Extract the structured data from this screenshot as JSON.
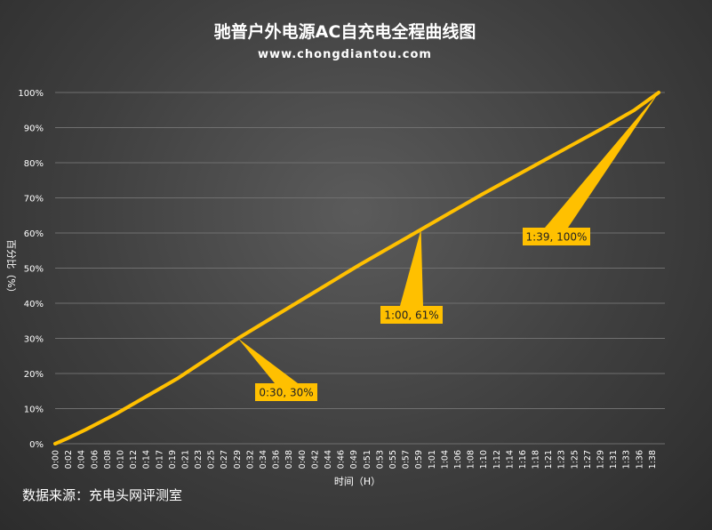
{
  "chart_data": {
    "type": "line",
    "title": "驰普户外电源AC自充电全程曲线图",
    "subtitle": "www.chongdiantou.com",
    "xlabel": "时间（H）",
    "ylabel": "百分比（%）",
    "source": "数据来源：充电头网评测室",
    "ylim": [
      0,
      100
    ],
    "y_ticks": [
      "0%",
      "10%",
      "20%",
      "30%",
      "40%",
      "50%",
      "60%",
      "70%",
      "80%",
      "90%",
      "100%"
    ],
    "x_tick_labels": [
      "0:00",
      "0:02",
      "0:04",
      "0:06",
      "0:08",
      "0:10",
      "0:12",
      "0:14",
      "0:17",
      "0:19",
      "0:21",
      "0:23",
      "0:25",
      "0:27",
      "0:29",
      "0:32",
      "0:34",
      "0:36",
      "0:38",
      "0:40",
      "0:42",
      "0:44",
      "0:46",
      "0:49",
      "0:51",
      "0:53",
      "0:55",
      "0:57",
      "0:59",
      "1:01",
      "1:04",
      "1:06",
      "1:08",
      "1:10",
      "1:12",
      "1:14",
      "1:16",
      "1:18",
      "1:21",
      "1:23",
      "1:25",
      "1:27",
      "1:29",
      "1:31",
      "1:33",
      "1:36",
      "1:38"
    ],
    "x_minutes_range": [
      0,
      100
    ],
    "grid": true,
    "series": [
      {
        "x_minutes": [
          0,
          2,
          5,
          10,
          20,
          30,
          40,
          50,
          60,
          70,
          80,
          90,
          95,
          97,
          99
        ],
        "values": [
          0,
          1.5,
          4,
          8.5,
          18.5,
          30,
          40.5,
          51,
          61,
          71,
          80.5,
          90,
          95,
          97.5,
          100
        ],
        "color": "#FFC000"
      }
    ],
    "annotations": [
      {
        "label": "0:30, 30%",
        "x_minutes": 30,
        "y": 30
      },
      {
        "label": "1:00, 61%",
        "x_minutes": 60,
        "y": 61
      },
      {
        "label": "1:39, 100%",
        "x_minutes": 99,
        "y": 100
      }
    ]
  }
}
